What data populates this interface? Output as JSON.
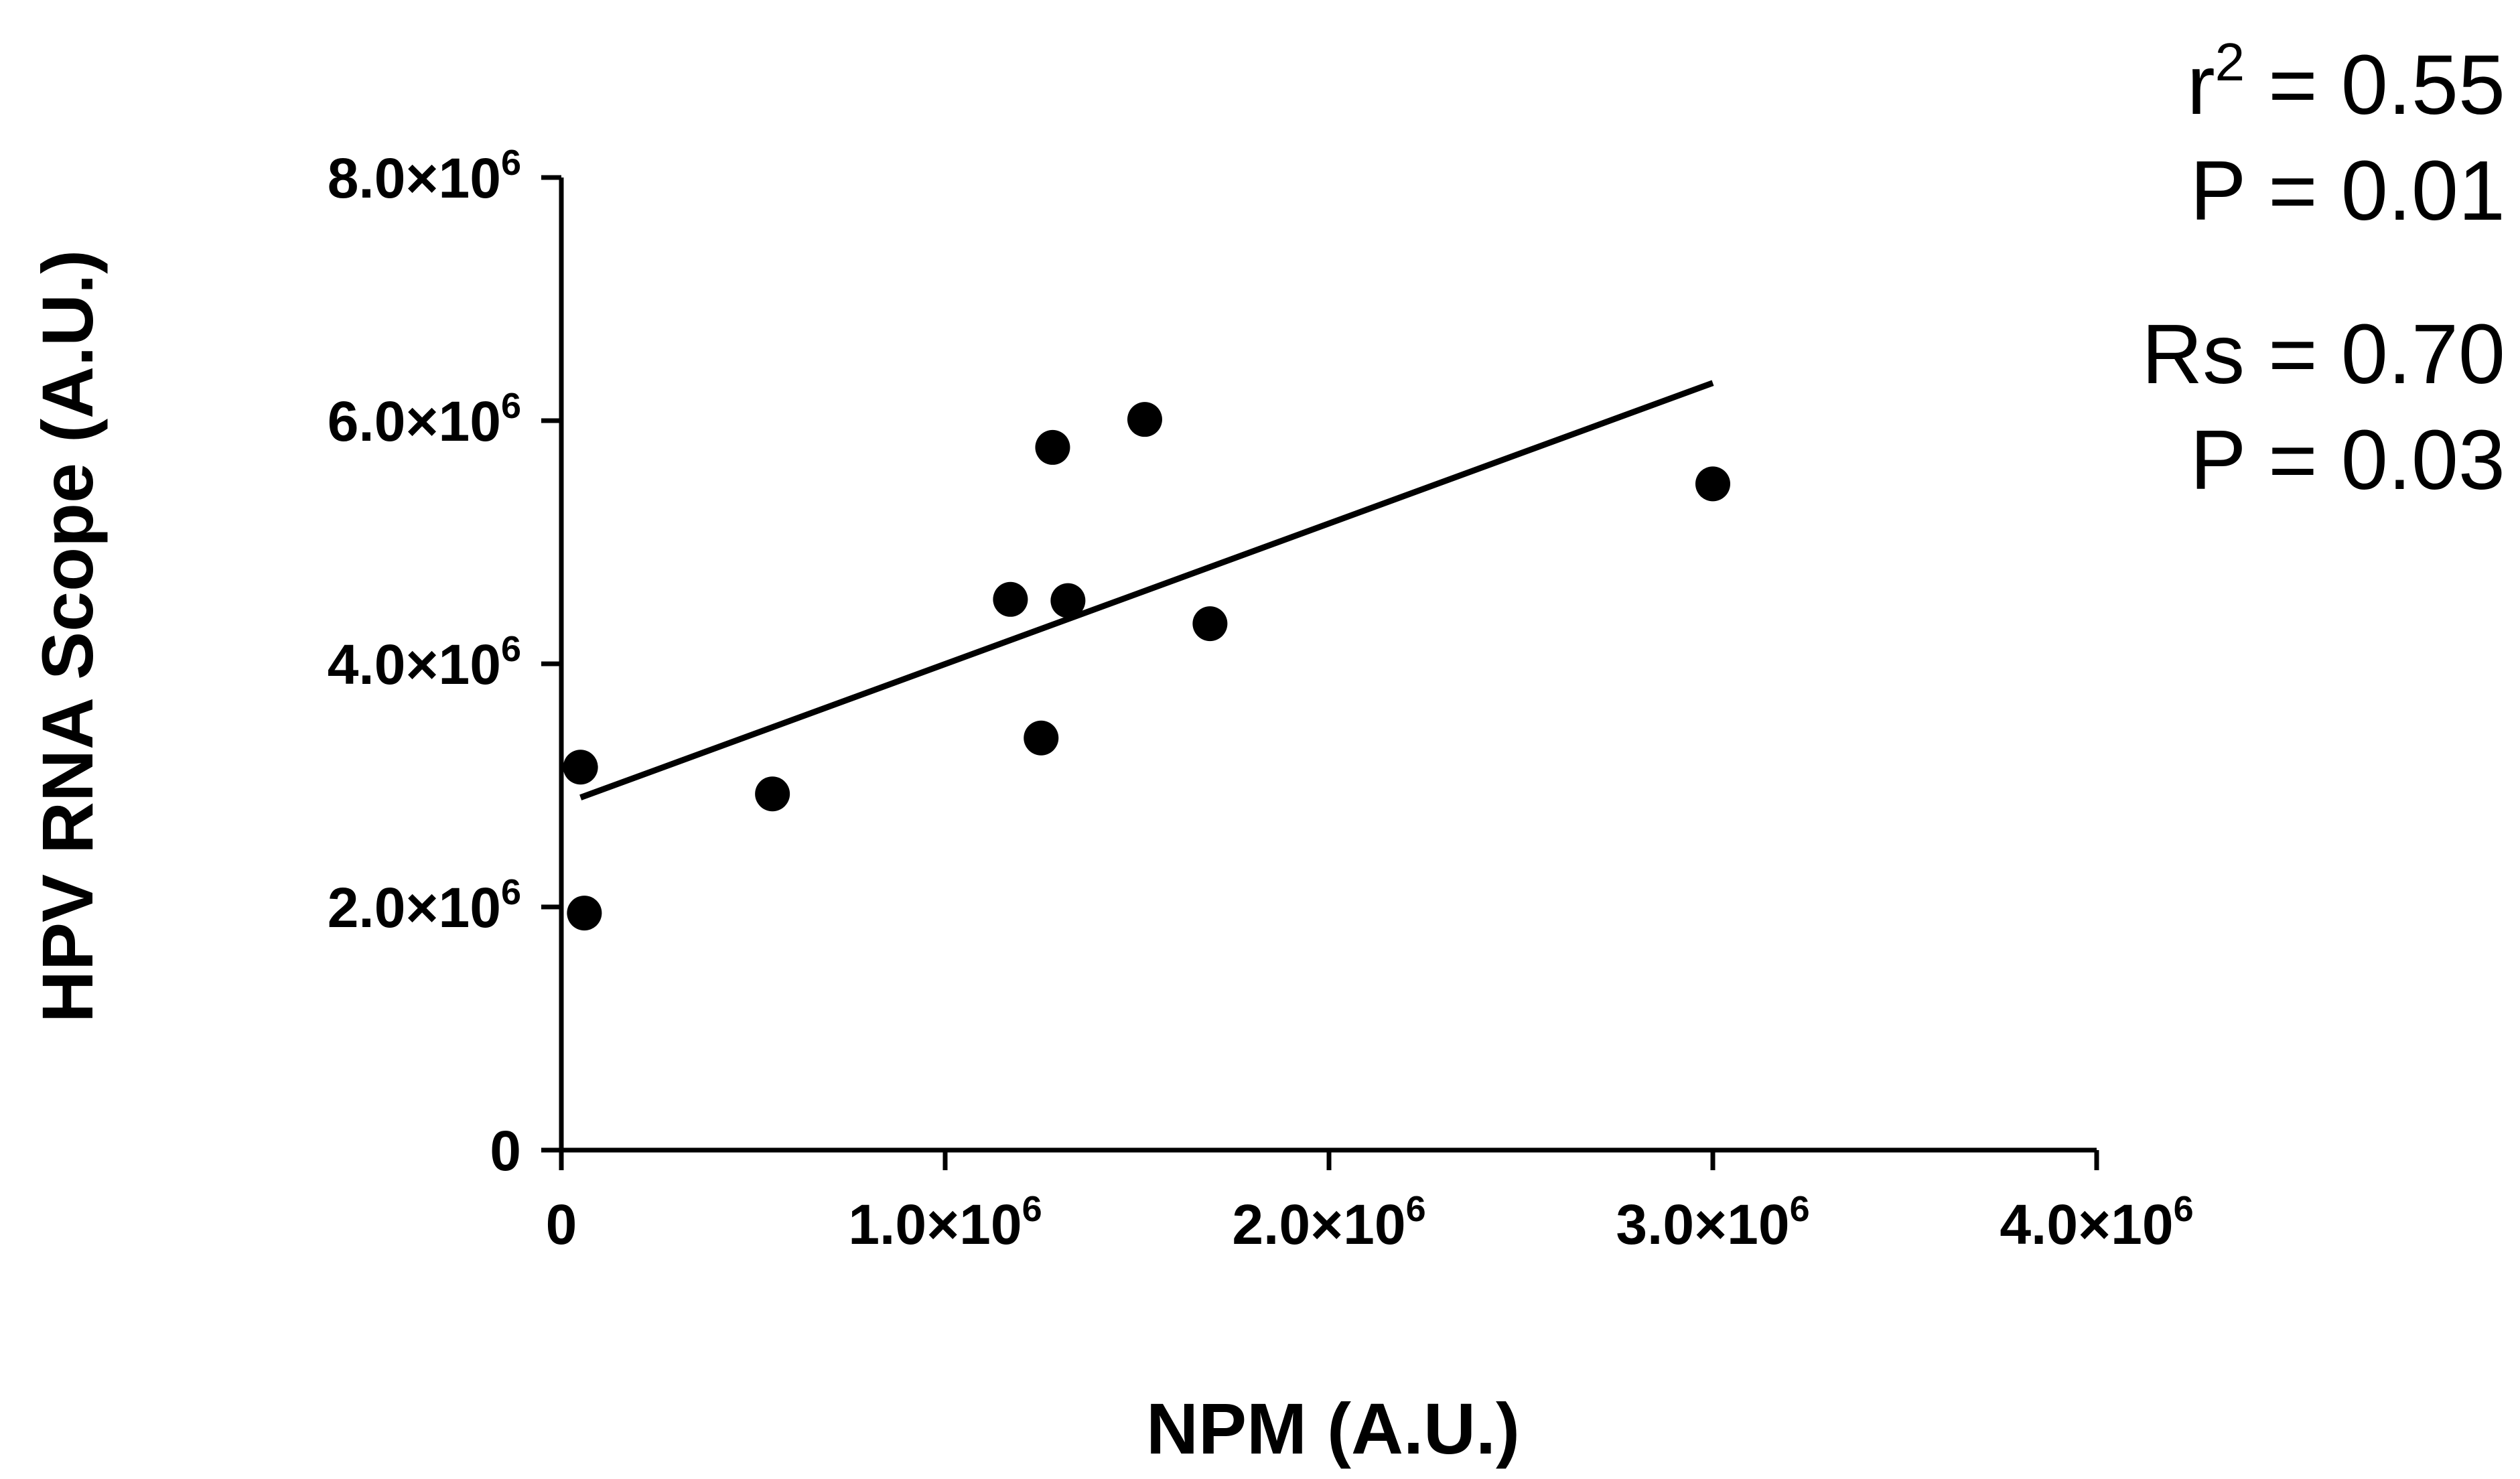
{
  "chart_data": {
    "type": "scatter",
    "xlabel": "NPM  (A.U.)",
    "ylabel": "HPV RNA Scope (A.U.)",
    "xlim": [
      0,
      4000000
    ],
    "ylim": [
      0,
      8000000
    ],
    "x_ticks": [
      {
        "value": 0,
        "base": "0",
        "exp": ""
      },
      {
        "value": 1000000,
        "base": "1.0×10",
        "exp": "6"
      },
      {
        "value": 2000000,
        "base": "2.0×10",
        "exp": "6"
      },
      {
        "value": 3000000,
        "base": "3.0×10",
        "exp": "6"
      },
      {
        "value": 4000000,
        "base": "4.0×10",
        "exp": "6"
      }
    ],
    "y_ticks": [
      {
        "value": 0,
        "base": "0",
        "exp": ""
      },
      {
        "value": 2000000,
        "base": "2.0×10",
        "exp": "6"
      },
      {
        "value": 4000000,
        "base": "4.0×10",
        "exp": "6"
      },
      {
        "value": 6000000,
        "base": "6.0×10",
        "exp": "6"
      },
      {
        "value": 8000000,
        "base": "8.0×10",
        "exp": "6"
      }
    ],
    "points": [
      {
        "x": 50000,
        "y": 3150000
      },
      {
        "x": 60000,
        "y": 1950000
      },
      {
        "x": 550000,
        "y": 2930000
      },
      {
        "x": 1170000,
        "y": 4530000
      },
      {
        "x": 1250000,
        "y": 3390000
      },
      {
        "x": 1280000,
        "y": 5780000
      },
      {
        "x": 1320000,
        "y": 4520000
      },
      {
        "x": 1520000,
        "y": 6010000
      },
      {
        "x": 1690000,
        "y": 4330000
      },
      {
        "x": 3000000,
        "y": 5480000
      }
    ],
    "fit_line": {
      "x": [
        50000,
        3000000
      ],
      "y": [
        2900000,
        6310000
      ]
    },
    "grid": false,
    "legend": "none",
    "annotations": {
      "r2_label": "r",
      "r2_sup": "2",
      "r2_value": " = 0.55",
      "p1": "P = 0.01",
      "rs": "Rs = 0.70",
      "p2": "P = 0.03"
    },
    "colors": {
      "marks": "#000000",
      "background": "#ffffff"
    }
  }
}
